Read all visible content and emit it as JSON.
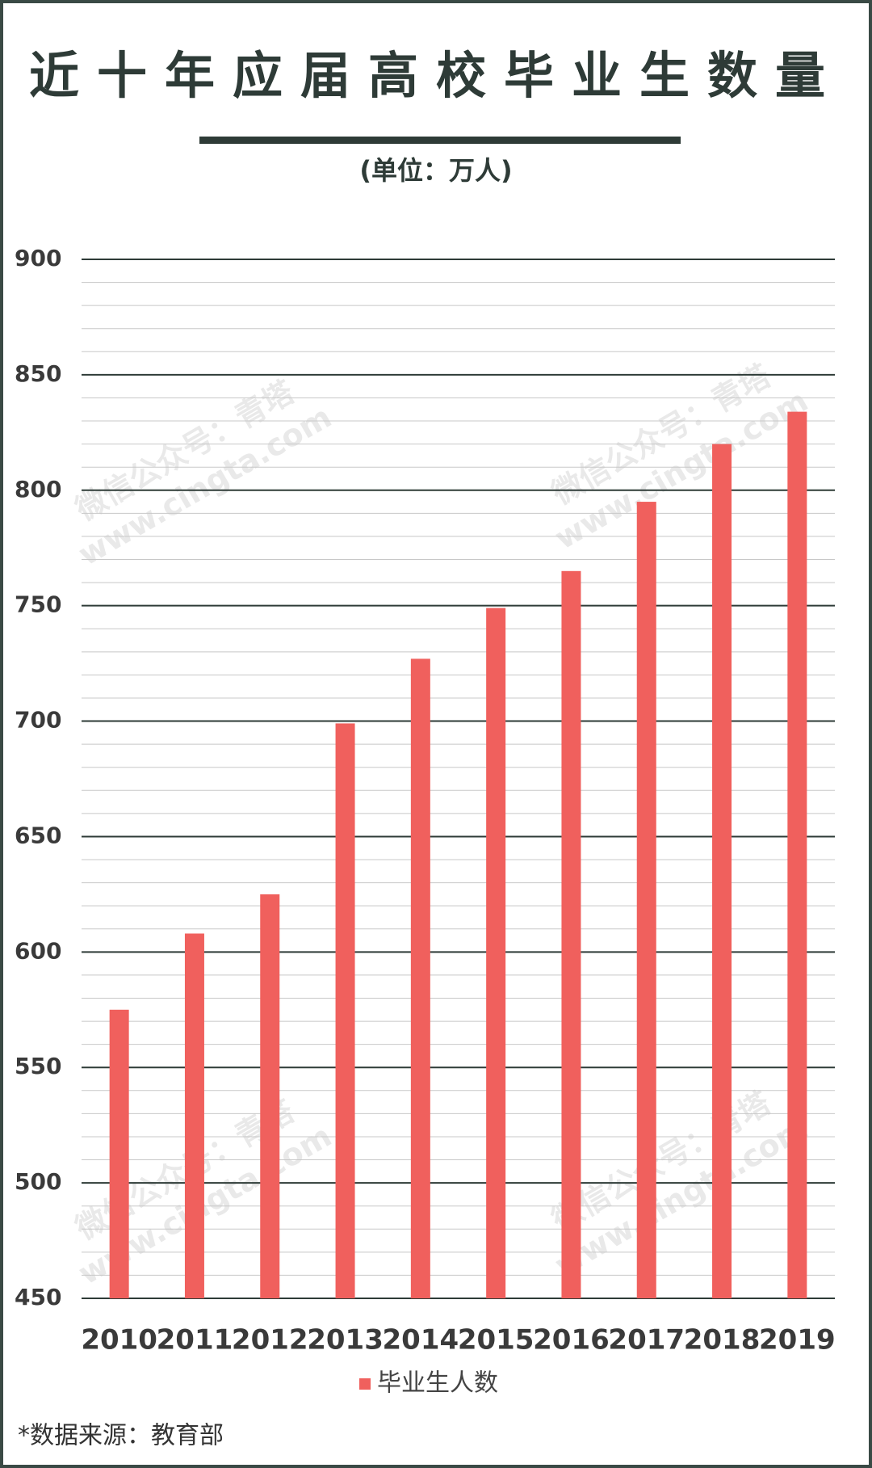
{
  "chart_data": {
    "type": "bar",
    "title": "近十年应届高校毕业生数量",
    "subtitle": "(单位：万人)",
    "categories": [
      "2010",
      "2011",
      "2012",
      "2013",
      "2014",
      "2015",
      "2016",
      "2017",
      "2018",
      "2019"
    ],
    "series": [
      {
        "name": "毕业生人数",
        "color": "#f0605d",
        "values": [
          575,
          608,
          625,
          699,
          727,
          749,
          765,
          795,
          820,
          834
        ]
      }
    ],
    "ylim": [
      450,
      900
    ],
    "yticks": [
      450,
      500,
      550,
      600,
      650,
      700,
      750,
      800,
      850,
      900
    ],
    "minor_yticks": [
      460,
      470,
      480,
      490,
      510,
      520,
      530,
      540,
      560,
      570,
      580,
      590,
      610,
      620,
      630,
      640,
      660,
      670,
      680,
      690,
      710,
      720,
      730,
      740,
      760,
      770,
      780,
      790,
      810,
      820,
      830,
      840,
      860,
      870,
      880,
      890
    ],
    "grid": true,
    "legend": "bottom",
    "source": "*数据来源：教育部",
    "watermark": [
      "微信公众号：青塔",
      "www.cingta.com"
    ]
  }
}
